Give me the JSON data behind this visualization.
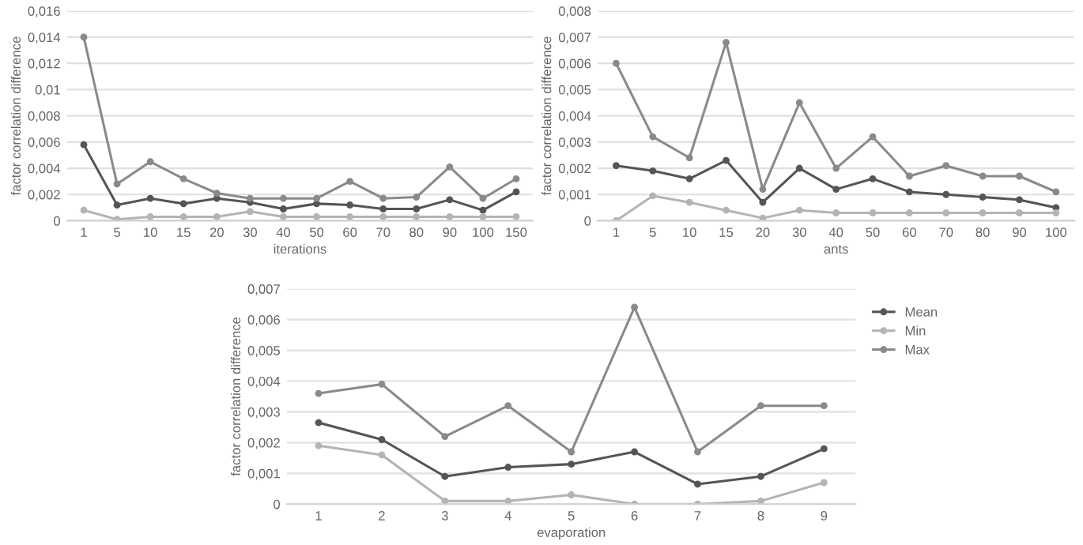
{
  "chart_data": [
    {
      "type": "line",
      "xlabel": "iterations",
      "ylabel": "factor correlation difference",
      "categories": [
        "1",
        "5",
        "10",
        "15",
        "20",
        "30",
        "40",
        "50",
        "60",
        "70",
        "80",
        "90",
        "100",
        "150"
      ],
      "series": [
        {
          "color": "#555555",
          "values": [
            0.0058,
            0.0012,
            0.0017,
            0.0013,
            0.0017,
            0.0014,
            0.0009,
            0.0013,
            0.0012,
            0.0009,
            0.0009,
            0.0016,
            0.0008,
            0.0022
          ]
        },
        {
          "color": "#b4b4b4",
          "values": [
            0.0008,
            0.0001,
            0.0003,
            0.0003,
            0.0003,
            0.0007,
            0.0003,
            0.0003,
            0.0003,
            0.0003,
            0.0003,
            0.0003,
            0.0003,
            0.0003
          ]
        },
        {
          "color": "#8a8a8a",
          "values": [
            0.014,
            0.0028,
            0.0045,
            0.0032,
            0.0021,
            0.0017,
            0.0017,
            0.0017,
            0.003,
            0.0017,
            0.0018,
            0.0041,
            0.0017,
            0.0032
          ]
        }
      ],
      "ylim": [
        0,
        0.016
      ],
      "yticks": [
        0,
        {
          "value": 0.002,
          "label": "0,002"
        },
        {
          "value": 0.004,
          "label": "0,004"
        },
        {
          "value": 0.006,
          "label": "0,006"
        },
        {
          "value": 0.008,
          "label": "0,008"
        },
        {
          "value": 0.01,
          "label": "0,01"
        },
        {
          "value": 0.012,
          "label": "0,012"
        },
        {
          "value": 0.014,
          "label": "0,014"
        },
        {
          "value": 0.016,
          "label": "0,016"
        }
      ],
      "grid": "y",
      "marker": "circle"
    },
    {
      "type": "line",
      "xlabel": "ants",
      "ylabel": "factor correlation difference",
      "categories": [
        "1",
        "5",
        "10",
        "15",
        "20",
        "30",
        "40",
        "50",
        "60",
        "70",
        "80",
        "90",
        "100"
      ],
      "series": [
        {
          "color": "#555555",
          "values": [
            0.0021,
            0.0019,
            0.0016,
            0.0023,
            0.0007,
            0.002,
            0.0012,
            0.0016,
            0.0011,
            0.001,
            0.0009,
            0.0008,
            0.0005
          ]
        },
        {
          "color": "#b4b4b4",
          "values": [
            0,
            0.00095,
            0.0007,
            0.0004,
            0.0001,
            0.0004,
            0.0003,
            0.0003,
            0.0003,
            0.0003,
            0.0003,
            0.0003,
            0.0003
          ]
        },
        {
          "color": "#8a8a8a",
          "values": [
            0.006,
            0.0032,
            0.0024,
            0.0068,
            0.0012,
            0.0045,
            0.002,
            0.0032,
            0.0017,
            0.0021,
            0.0017,
            0.0017,
            0.0011
          ]
        }
      ],
      "ylim": [
        0,
        0.008
      ],
      "yticks": [
        0,
        {
          "value": 0.001,
          "label": "0,001"
        },
        {
          "value": 0.002,
          "label": "0,002"
        },
        {
          "value": 0.003,
          "label": "0,003"
        },
        {
          "value": 0.004,
          "label": "0,004"
        },
        {
          "value": 0.005,
          "label": "0,005"
        },
        {
          "value": 0.006,
          "label": "0,006"
        },
        {
          "value": 0.007,
          "label": "0,007"
        },
        {
          "value": 0.008,
          "label": "0,008"
        }
      ],
      "grid": "y",
      "marker": "circle"
    },
    {
      "type": "line",
      "xlabel": "evaporation",
      "ylabel": "factor correlation difference",
      "categories": [
        "1",
        "2",
        "3",
        "4",
        "5",
        "6",
        "7",
        "8",
        "9"
      ],
      "series": [
        {
          "name": "Mean",
          "color": "#555555",
          "values": [
            0.00265,
            0.0021,
            0.0009,
            0.0012,
            0.0013,
            0.0017,
            0.00065,
            0.0009,
            0.0018
          ]
        },
        {
          "name": "Min",
          "color": "#b4b4b4",
          "values": [
            0.0019,
            0.0016,
            0.0001,
            0.0001,
            0.0003,
            0,
            0,
            0.0001,
            0.0007
          ]
        },
        {
          "name": "Max",
          "color": "#8a8a8a",
          "values": [
            0.0036,
            0.0039,
            0.0022,
            0.0032,
            0.0017,
            0.0064,
            0.0017,
            0.0032,
            0.0032
          ]
        }
      ],
      "ylim": [
        0,
        0.007
      ],
      "yticks": [
        0,
        {
          "value": 0.001,
          "label": "0,001"
        },
        {
          "value": 0.002,
          "label": "0,002"
        },
        {
          "value": 0.003,
          "label": "0,003"
        },
        {
          "value": 0.004,
          "label": "0,004"
        },
        {
          "value": 0.005,
          "label": "0,005"
        },
        {
          "value": 0.006,
          "label": "0,006"
        },
        {
          "value": 0.007,
          "label": "0,007"
        }
      ],
      "grid": "y",
      "marker": "circle",
      "legend": "right"
    }
  ]
}
